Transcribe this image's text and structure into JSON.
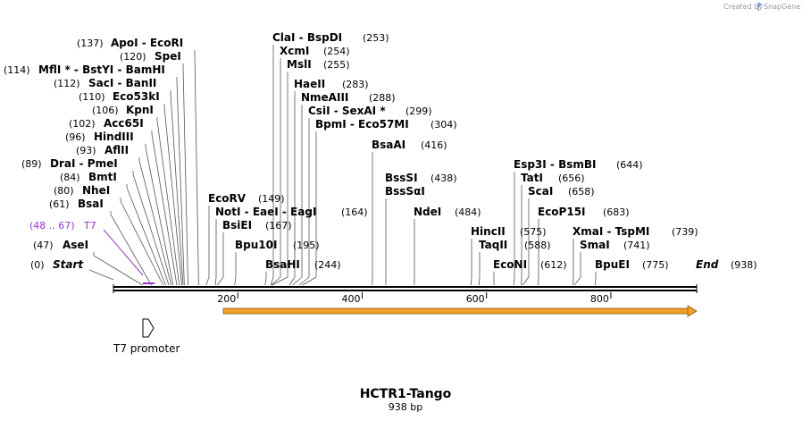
{
  "credit": {
    "text": "Created by",
    "brand": "SnapGene"
  },
  "sequence": {
    "name": "HCTR1-Tango",
    "length_label": "938 bp",
    "length": 938
  },
  "colors": {
    "backbone": "#000000",
    "feature_fill": "#f0a02a",
    "feature_stroke": "#8a5a10",
    "primer": "#9933cc",
    "line": "#555555"
  },
  "axis_ticks": [
    {
      "value": 200,
      "label": "200"
    },
    {
      "value": 400,
      "label": "400"
    },
    {
      "value": 600,
      "label": "600"
    },
    {
      "value": 800,
      "label": "800"
    }
  ],
  "enzymes_left": [
    {
      "id": "apoi",
      "pos": "(137)",
      "name": "ApoI  - EcoRI",
      "site": 137
    },
    {
      "id": "spei",
      "pos": "(120)",
      "name": "SpeI",
      "site": 120
    },
    {
      "id": "mfli",
      "pos": "(114)",
      "name": "MflI * - BstYI  - BamHI",
      "site": 114
    },
    {
      "id": "saci",
      "pos": "(112)",
      "name": "SacI  - BanII",
      "site": 112
    },
    {
      "id": "eco53ki",
      "pos": "(110)",
      "name": "Eco53kI",
      "site": 110
    },
    {
      "id": "kpni",
      "pos": "(106)",
      "name": "KpnI",
      "site": 106
    },
    {
      "id": "acc65i",
      "pos": "(102)",
      "name": "Acc65I",
      "site": 102
    },
    {
      "id": "hindiii",
      "pos": "(96)",
      "name": "HindIII",
      "site": 96
    },
    {
      "id": "aflii",
      "pos": "(93)",
      "name": "AflII",
      "site": 93
    },
    {
      "id": "drai",
      "pos": "(89)",
      "name": "DraI  - PmeI",
      "site": 89
    },
    {
      "id": "bmti",
      "pos": "(84)",
      "name": "BmtI",
      "site": 84
    },
    {
      "id": "nhei",
      "pos": "(80)",
      "name": "NheI",
      "site": 80
    },
    {
      "id": "bsai",
      "pos": "(61)",
      "name": "BsaI",
      "site": 61
    },
    {
      "id": "asei",
      "pos": "(47)",
      "name": "AseI",
      "site": 47
    }
  ],
  "primer": {
    "range": "(48 .. 67)",
    "name": "T7",
    "start": 48,
    "end": 67
  },
  "start_marker": {
    "pos": "(0)",
    "name": "Start",
    "site": 0
  },
  "end_marker": {
    "pos": "(938)",
    "name": "End",
    "site": 938
  },
  "enzymes_mid": [
    {
      "id": "clai",
      "name": "ClaI  - BspDI",
      "pos": "(253)",
      "site": 253
    },
    {
      "id": "xcmi",
      "name": "XcmI",
      "pos": "(254)",
      "site": 254
    },
    {
      "id": "msli",
      "name": "MslI",
      "pos": "(255)",
      "site": 255
    },
    {
      "id": "haeii",
      "name": "HaeII",
      "pos": "(283)",
      "site": 283
    },
    {
      "id": "nmeaiii",
      "name": "NmeAIII",
      "pos": "(288)",
      "site": 288
    },
    {
      "id": "csii",
      "name": "CsiI  - SexAI *",
      "pos": "(299)",
      "site": 299
    },
    {
      "id": "bpmi",
      "name": "BpmI  - Eco57MI",
      "pos": "(304)",
      "site": 304
    },
    {
      "id": "ecorv",
      "name": "EcoRV",
      "pos": "(149)",
      "site": 149
    },
    {
      "id": "noti",
      "name": "NotI  - EaeI  - EagI",
      "pos": "(164)",
      "site": 164
    },
    {
      "id": "bsiei",
      "name": "BsiEI",
      "pos": "(167)",
      "site": 167
    },
    {
      "id": "bpu10i",
      "name": "Bpu10I",
      "pos": "(195)",
      "site": 195
    },
    {
      "id": "bsahi",
      "name": "BsaHI",
      "pos": "(244)",
      "site": 244
    }
  ],
  "enzymes_right": [
    {
      "id": "bsaai",
      "name": "BsaAI",
      "pos": "(416)",
      "site": 416
    },
    {
      "id": "bsssi",
      "name": "BssSI",
      "pos": "(438)",
      "site": 438
    },
    {
      "id": "bsssai",
      "name": "BssSαI",
      "pos": "",
      "site": 438
    },
    {
      "id": "ndei",
      "name": "NdeI",
      "pos": "(484)",
      "site": 484
    },
    {
      "id": "hincii",
      "name": "HincII",
      "pos": "(575)",
      "site": 575
    },
    {
      "id": "taqii",
      "name": "TaqII",
      "pos": "(588)",
      "site": 588
    },
    {
      "id": "econi",
      "name": "EcoNI",
      "pos": "(612)",
      "site": 612
    },
    {
      "id": "esp3i",
      "name": "Esp3I  - BsmBI",
      "pos": "(644)",
      "site": 644
    },
    {
      "id": "tati",
      "name": "TatI",
      "pos": "(656)",
      "site": 656
    },
    {
      "id": "scai",
      "name": "ScaI",
      "pos": "(658)",
      "site": 658
    },
    {
      "id": "ecop15i",
      "name": "EcoP15I",
      "pos": "(683)",
      "site": 683
    },
    {
      "id": "xmai",
      "name": "XmaI  - TspMI",
      "pos": "(739)",
      "site": 739
    },
    {
      "id": "smai",
      "name": "SmaI",
      "pos": "(741)",
      "site": 741
    },
    {
      "id": "bpuei",
      "name": "BpuEI",
      "pos": "(775)",
      "site": 775
    }
  ],
  "features": {
    "promoter": {
      "name": "T7 promoter"
    }
  }
}
